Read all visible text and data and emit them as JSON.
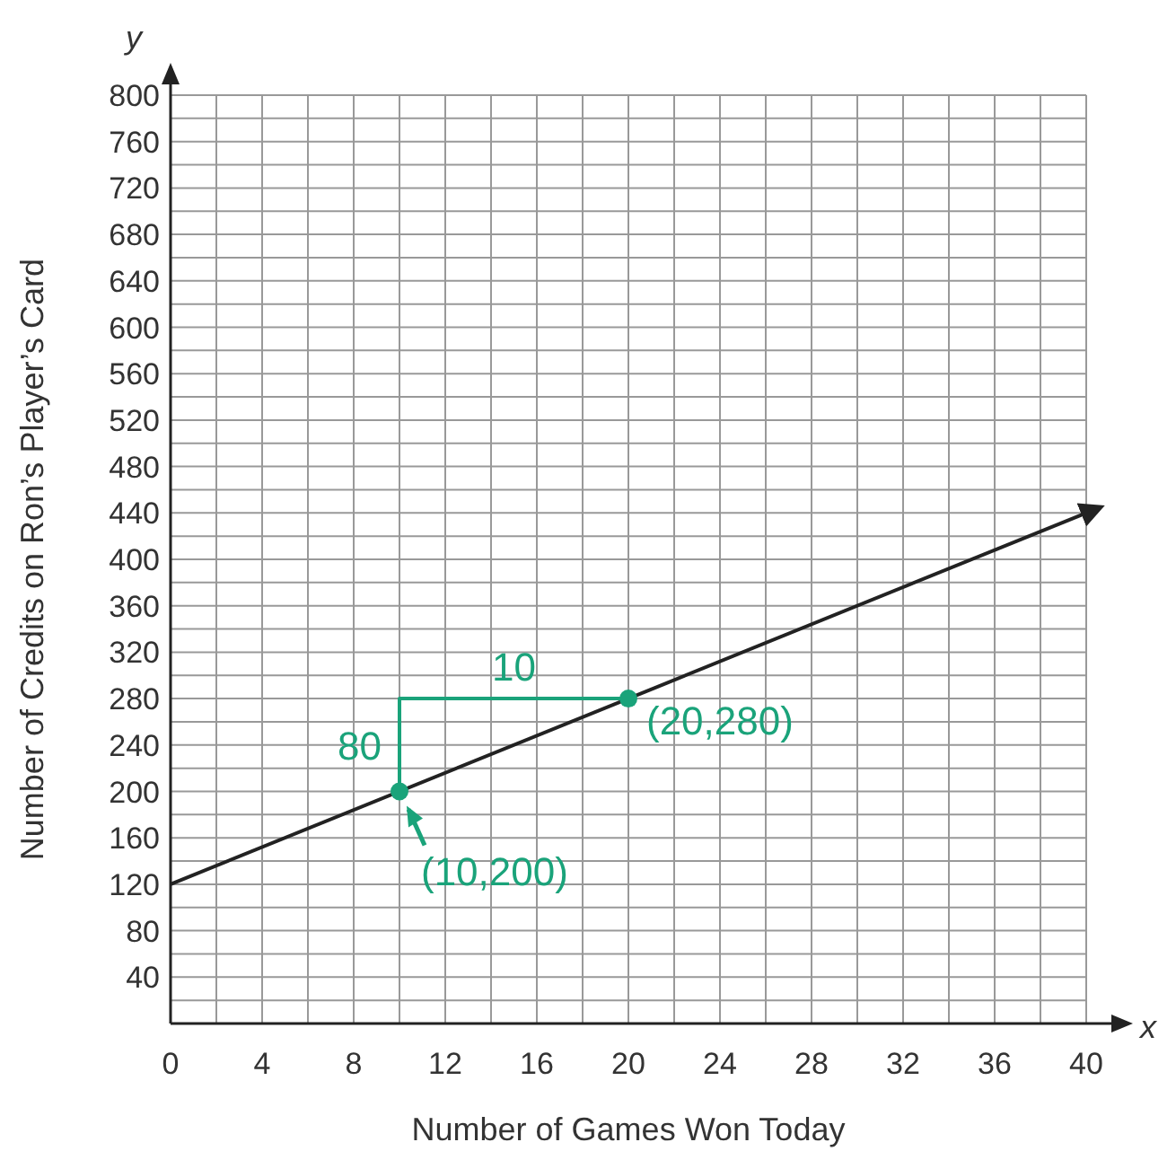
{
  "chart_data": {
    "type": "line",
    "xlabel": "Number of Games Won Today",
    "ylabel": "Number of Credits on Ron’s Player’s Card",
    "xlim": [
      0,
      40
    ],
    "ylim": [
      0,
      800
    ],
    "xticks": [
      0,
      {
        "value": 2,
        "label": null
      },
      4,
      {
        "value": 6,
        "label": null
      },
      8,
      {
        "value": 10,
        "label": null
      },
      12,
      {
        "value": 14,
        "label": null
      },
      16,
      {
        "value": 18,
        "label": null
      },
      20,
      {
        "value": 22,
        "label": null
      },
      24,
      {
        "value": 26,
        "label": null
      },
      28,
      {
        "value": 30,
        "label": null
      },
      32,
      {
        "value": 34,
        "label": null
      },
      36,
      {
        "value": 38,
        "label": null
      },
      40
    ],
    "yticks": [
      {
        "value": 0,
        "label": null
      },
      {
        "value": 20,
        "label": null
      },
      40,
      {
        "value": 60,
        "label": null
      },
      80,
      {
        "value": 100,
        "label": null
      },
      120,
      {
        "value": 140,
        "label": null
      },
      160,
      {
        "value": 180,
        "label": null
      },
      200,
      {
        "value": 220,
        "label": null
      },
      240,
      {
        "value": 260,
        "label": null
      },
      280,
      {
        "value": 300,
        "label": null
      },
      320,
      {
        "value": 340,
        "label": null
      },
      360,
      {
        "value": 380,
        "label": null
      },
      400,
      {
        "value": 420,
        "label": null
      },
      440,
      {
        "value": 460,
        "label": null
      },
      480,
      {
        "value": 500,
        "label": null
      },
      520,
      {
        "value": 540,
        "label": null
      },
      560,
      {
        "value": 580,
        "label": null
      },
      600,
      {
        "value": 620,
        "label": null
      },
      640,
      {
        "value": 660,
        "label": null
      },
      680,
      {
        "value": 700,
        "label": null
      },
      720,
      {
        "value": 740,
        "label": null
      },
      760,
      {
        "value": 780,
        "label": null
      },
      800
    ],
    "grid": true,
    "series": [
      {
        "color": "#222222",
        "x": [
          0,
          40
        ],
        "values": [
          120,
          440
        ]
      },
      {
        "type": "line",
        "color": "#1aa37a",
        "x": [
          10,
          10,
          20
        ],
        "values": [
          200,
          280,
          280
        ]
      },
      {
        "type": "scatter",
        "color": "#1aa37a",
        "x": [
          10,
          20
        ],
        "values": [
          200,
          280
        ]
      }
    ],
    "annotations": [
      "x",
      "y",
      {
        "text": "10",
        "x": 15,
        "y": 280
      },
      {
        "text": "80",
        "x": 10,
        "y": 240
      },
      {
        "text": "(20,280)",
        "x": 20,
        "y": 280
      },
      {
        "text": "(10,200)",
        "x": 10,
        "y": 200
      }
    ]
  }
}
